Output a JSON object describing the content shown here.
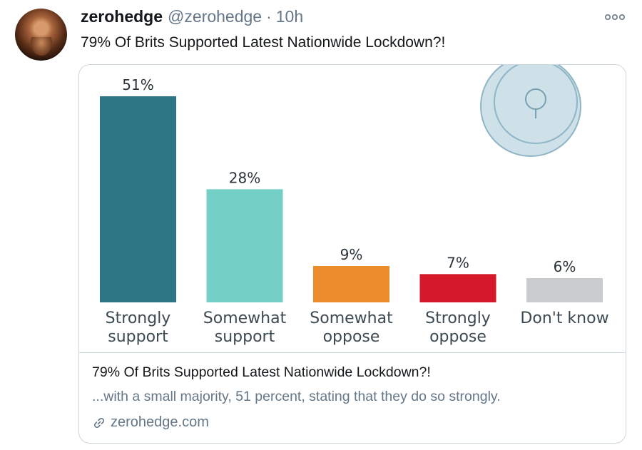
{
  "tweet": {
    "display_name": "zerohedge",
    "handle": "@zerohedge",
    "separator": "·",
    "time": "10h",
    "text": "79% Of Brits Supported Latest Nationwide Lockdown?!"
  },
  "card": {
    "title": "79% Of Brits Supported Latest Nationwide Lockdown?!",
    "description": "...with a small majority, 51 percent, stating that they do so strongly.",
    "domain": "zerohedge.com"
  },
  "icons": {
    "more": "more-options-icon",
    "link": "link-icon",
    "watermark": "statista-watermark-icon"
  },
  "chart_data": {
    "type": "bar",
    "title": "",
    "xlabel": "",
    "ylabel": "",
    "ylim": [
      0,
      55
    ],
    "categories": [
      [
        "Strongly",
        "support"
      ],
      [
        "Somewhat",
        "support"
      ],
      [
        "Somewhat",
        "oppose"
      ],
      [
        "Strongly",
        "oppose"
      ],
      [
        "Don't know"
      ]
    ],
    "values": [
      51,
      28,
      9,
      7,
      6
    ],
    "value_labels": [
      "51%",
      "28%",
      "9%",
      "7%",
      "6%"
    ],
    "colors": [
      "#2e7585",
      "#74d0c7",
      "#ec8d2c",
      "#d5192a",
      "#c9cbcf"
    ]
  }
}
